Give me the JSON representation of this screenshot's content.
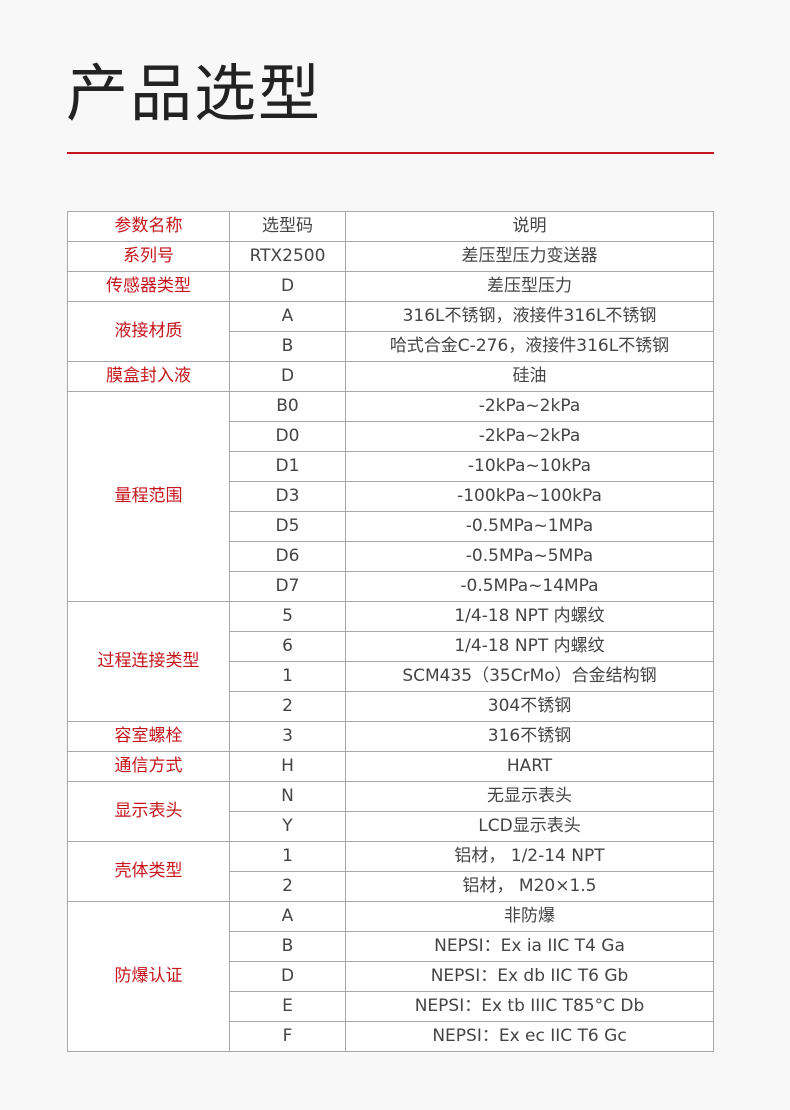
{
  "title": "产品选型",
  "colors": {
    "accent": "#c4161c"
  },
  "table": {
    "headers": [
      "参数名称",
      "选型码",
      "说明"
    ],
    "groups": [
      {
        "param": "系列号",
        "rows": [
          [
            "RTX2500",
            "差压型压力变送器"
          ]
        ]
      },
      {
        "param": "传感器类型",
        "rows": [
          [
            "D",
            "差压型压力"
          ]
        ]
      },
      {
        "param": "液接材质",
        "rows": [
          [
            "A",
            "316L不锈钢，液接件316L不锈钢"
          ],
          [
            "B",
            "哈式合金C-276，液接件316L不锈钢"
          ]
        ]
      },
      {
        "param": "膜盒封入液",
        "rows": [
          [
            "D",
            "硅油"
          ]
        ]
      },
      {
        "param": "量程范围",
        "rows": [
          [
            "B0",
            "-2kPa~2kPa"
          ],
          [
            "D0",
            "-2kPa~2kPa"
          ],
          [
            "D1",
            "-10kPa~10kPa"
          ],
          [
            "D3",
            "-100kPa~100kPa"
          ],
          [
            "D5",
            "-0.5MPa~1MPa"
          ],
          [
            "D6",
            "-0.5MPa~5MPa"
          ],
          [
            "D7",
            "-0.5MPa~14MPa"
          ]
        ]
      },
      {
        "param": "过程连接类型",
        "rows": [
          [
            "5",
            "1/4-18 NPT 内螺纹"
          ],
          [
            "6",
            "1/4-18 NPT 内螺纹"
          ],
          [
            "1",
            "SCM435（35CrMo）合金结构钢"
          ],
          [
            "2",
            "304不锈钢"
          ]
        ]
      },
      {
        "param": "容室螺栓",
        "rows": [
          [
            "3",
            "316不锈钢"
          ]
        ]
      },
      {
        "param": "通信方式",
        "rows": [
          [
            "H",
            "HART"
          ]
        ]
      },
      {
        "param": "显示表头",
        "rows": [
          [
            "N",
            "无显示表头"
          ],
          [
            "Y",
            "LCD显示表头"
          ]
        ]
      },
      {
        "param": "壳体类型",
        "rows": [
          [
            "1",
            "铝材， 1/2-14 NPT"
          ],
          [
            "2",
            "铝材， M20×1.5"
          ]
        ]
      },
      {
        "param": "防爆认证",
        "rows": [
          [
            "A",
            "非防爆"
          ],
          [
            "B",
            "NEPSI：Ex ia IIC T4 Ga"
          ],
          [
            "D",
            "NEPSI：Ex db IIC T6 Gb"
          ],
          [
            "E",
            "NEPSI：Ex tb IIIC T85°C Db"
          ],
          [
            "F",
            "NEPSI：Ex ec IIC T6 Gc"
          ]
        ]
      }
    ]
  }
}
